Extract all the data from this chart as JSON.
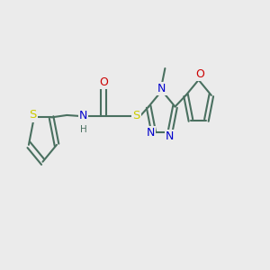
{
  "bg_color": "#ebebeb",
  "bond_color": "#4a7060",
  "bond_width": 1.5,
  "atom_colors": {
    "S": "#cccc00",
    "N": "#0000cc",
    "O": "#cc0000",
    "C": "#4a7060",
    "H": "#4a7060"
  },
  "font_size_atom": 8.5,
  "xlim": [
    0,
    10
  ],
  "ylim": [
    2,
    8
  ]
}
